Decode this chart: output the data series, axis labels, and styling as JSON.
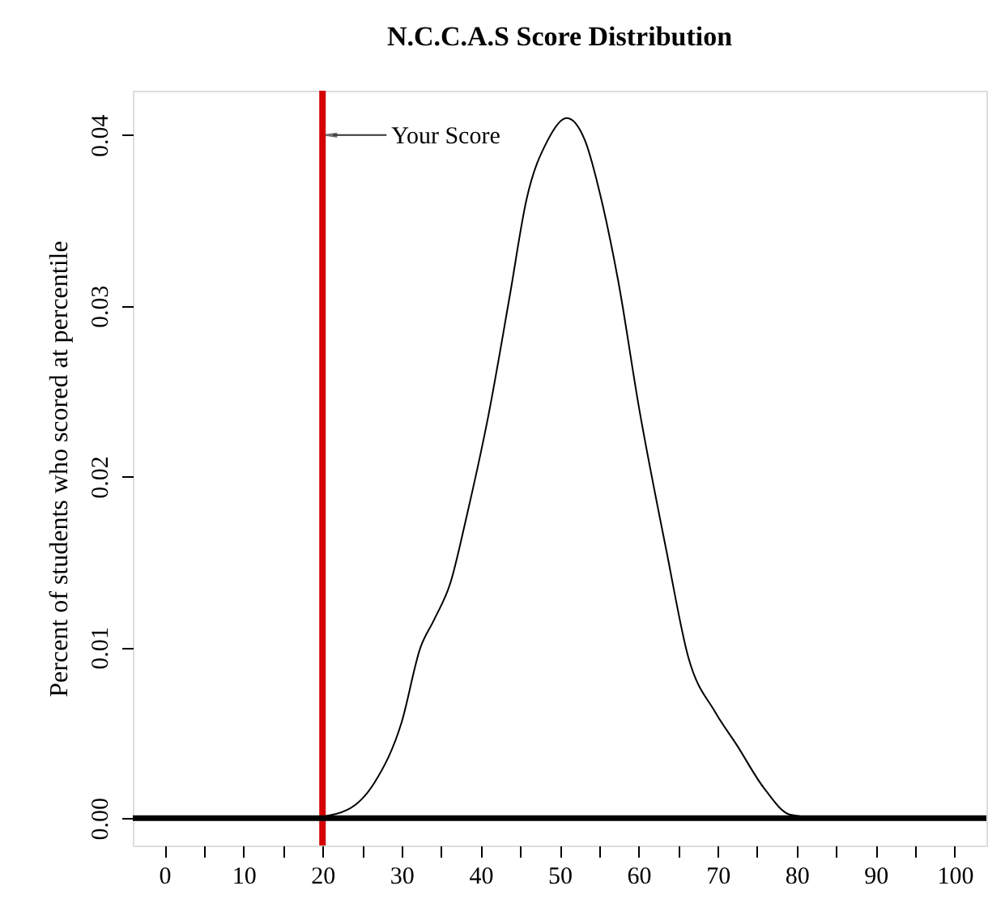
{
  "chart_data": {
    "type": "line",
    "title": "N.C.C.A.S Score Distribution",
    "ylabel": "Percent of students who scored at percentile",
    "x": [
      14,
      19.8,
      23.2,
      26.6,
      30,
      32.4,
      34.1,
      36.2,
      38.2,
      41,
      43.7,
      45.8,
      48.5,
      50.9,
      53.2,
      55.3,
      57.4,
      60.1,
      63.5,
      66.3,
      69.7,
      72.4,
      75.8,
      79.2,
      83.3
    ],
    "series": [
      {
        "color": "#000000",
        "values": [
          0,
          0.0001,
          0.0005,
          0.0021,
          0.0056,
          0.01,
          0.0116,
          0.0138,
          0.0176,
          0.0236,
          0.0306,
          0.0362,
          0.0397,
          0.041,
          0.0397,
          0.0362,
          0.0315,
          0.0239,
          0.0157,
          0.0094,
          0.0062,
          0.0043,
          0.0018,
          0.0002,
          0
        ]
      }
    ],
    "xlim": [
      -4,
      104
    ],
    "ylim": [
      -0.0016,
      0.0426
    ],
    "xticks": [
      0,
      {
        "value": 5,
        "label": null
      },
      10,
      {
        "value": 15,
        "label": null
      },
      20,
      {
        "value": 25,
        "label": null
      },
      30,
      {
        "value": 35,
        "label": null
      },
      40,
      {
        "value": 45,
        "label": null
      },
      50,
      {
        "value": 55,
        "label": null
      },
      60,
      {
        "value": 65,
        "label": null
      },
      70,
      {
        "value": 75,
        "label": null
      },
      80,
      {
        "value": 85,
        "label": null
      },
      90,
      {
        "value": 95,
        "label": null
      },
      100
    ],
    "yticks": [
      {
        "value": 0,
        "label": "0.00"
      },
      {
        "value": 0.01,
        "label": "0.01"
      },
      {
        "value": 0.02,
        "label": "0.02"
      },
      {
        "value": 0.03,
        "label": "0.03"
      },
      {
        "value": 0.04,
        "label": "0.04"
      }
    ],
    "ref_lines": [
      {
        "axis": "x",
        "value": 20,
        "color": "#d40000"
      },
      {
        "axis": "y",
        "value": 0,
        "color": "#000000"
      }
    ],
    "annotations": [
      {
        "text": "Your Score",
        "x": 20,
        "y": 0.04
      }
    ],
    "grid": false,
    "marker": "none",
    "line_style": "solid"
  }
}
